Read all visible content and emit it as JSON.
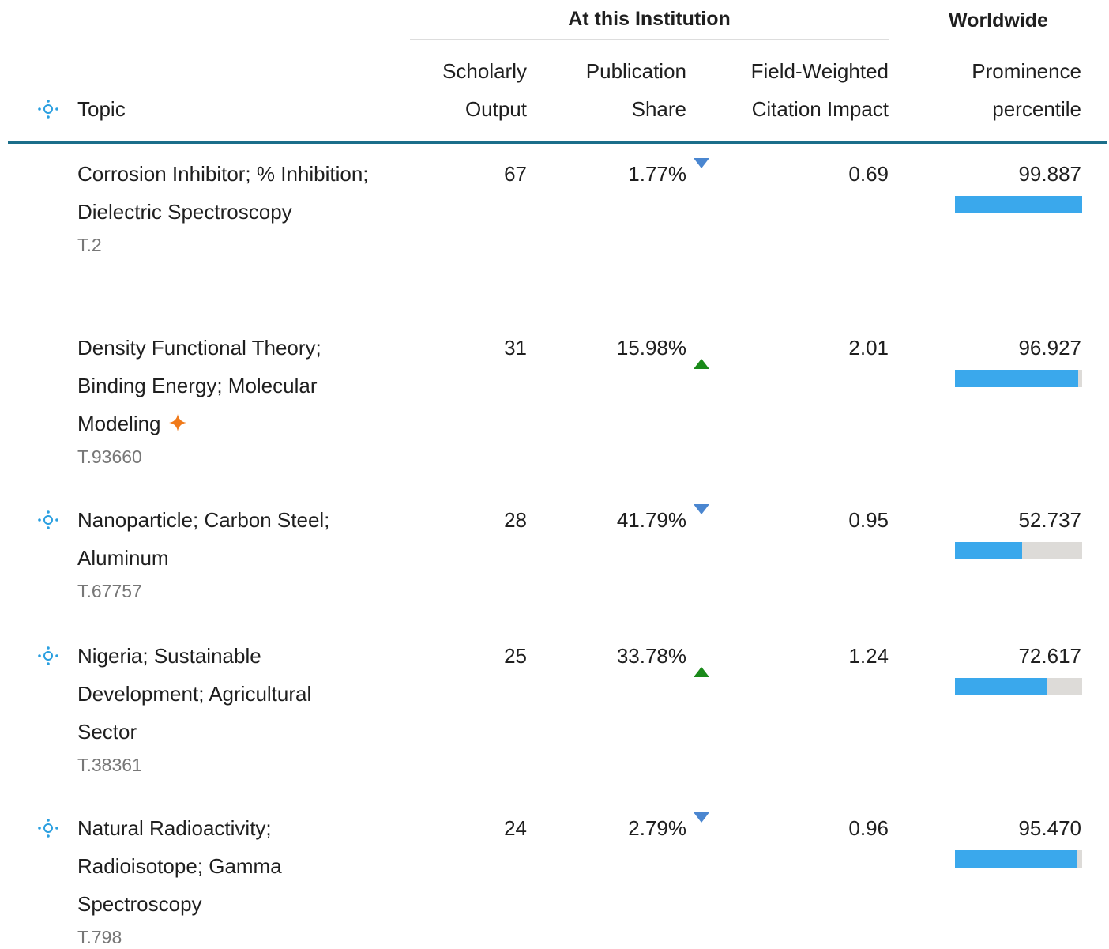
{
  "header": {
    "group_institution": "At this Institution",
    "group_worldwide": "Worldwide",
    "columns": {
      "topic": "Topic",
      "output": [
        "Scholarly",
        "Output"
      ],
      "share": [
        "Publication",
        "Share"
      ],
      "fwci": [
        "Field-Weighted",
        "Citation Impact"
      ],
      "percentile": [
        "Prominence",
        "percentile"
      ]
    },
    "topic_icon": true
  },
  "table": {
    "rows": [
      {
        "topic": "Corrosion Inhibitor; % Inhibition; Dielectric Spectroscopy",
        "id": "T.2",
        "output": "67",
        "share": "1.77%",
        "trend": "down",
        "fwci": "0.69",
        "percentile": "99.887",
        "icon": false,
        "emerging": false
      },
      {
        "topic": "Density Functional Theory; Binding Energy; Molecular Modeling",
        "id": "T.93660",
        "output": "31",
        "share": "15.98%",
        "trend": "up",
        "fwci": "2.01",
        "percentile": "96.927",
        "icon": false,
        "emerging": true
      },
      {
        "topic": "Nanoparticle; Carbon Steel; Aluminum",
        "id": "T.67757",
        "output": "28",
        "share": "41.79%",
        "trend": "down",
        "fwci": "0.95",
        "percentile": "52.737",
        "icon": true,
        "emerging": false
      },
      {
        "topic": "Nigeria; Sustainable Development; Agricultural Sector",
        "id": "T.38361",
        "output": "25",
        "share": "33.78%",
        "trend": "up",
        "fwci": "1.24",
        "percentile": "72.617",
        "icon": true,
        "emerging": false
      },
      {
        "topic": "Natural Radioactivity; Radioisotope; Gamma Spectroscopy",
        "id": "T.798",
        "output": "24",
        "share": "2.79%",
        "trend": "down",
        "fwci": "0.96",
        "percentile": "95.470",
        "icon": true,
        "emerging": false
      }
    ]
  }
}
